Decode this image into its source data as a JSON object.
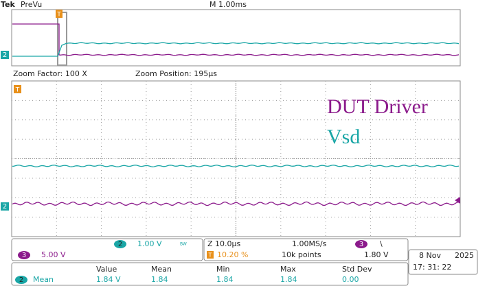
{
  "header": {
    "brand": "Tek",
    "mode": "PreVu",
    "timebase": "M 1.00ms"
  },
  "zoom": {
    "factor": "Zoom Factor: 100 X",
    "position": "Zoom Position: 195µs"
  },
  "trace_labels": [
    "DUT Driver",
    "Vsd"
  ],
  "markers": {
    "trigger": "T",
    "ch2": "2"
  },
  "channels": {
    "ch2": {
      "number": "2",
      "scale": "1.00 V",
      "bandwidth": "BW"
    },
    "ch3": {
      "number": "3",
      "scale": "5.00 V"
    }
  },
  "acquisition": {
    "zoom_scale": "Z 10.0µs",
    "sample_rate": "1.00MS/s",
    "trigger_position": "10.20 %",
    "record_length": "10k points",
    "trigger_source": "3",
    "trigger_slope": "\\",
    "trigger_level": "1.80 V"
  },
  "datetime": {
    "date": "8 Nov",
    "year": "2025",
    "time": "17: 31: 22"
  },
  "measurements": {
    "headers": [
      "Value",
      "Mean",
      "Min",
      "Max",
      "Std Dev"
    ],
    "rows": [
      {
        "source": "2",
        "type": "Mean",
        "values": [
          "1.84 V",
          "1.84",
          "1.84",
          "1.84",
          "0.00"
        ]
      }
    ]
  }
}
